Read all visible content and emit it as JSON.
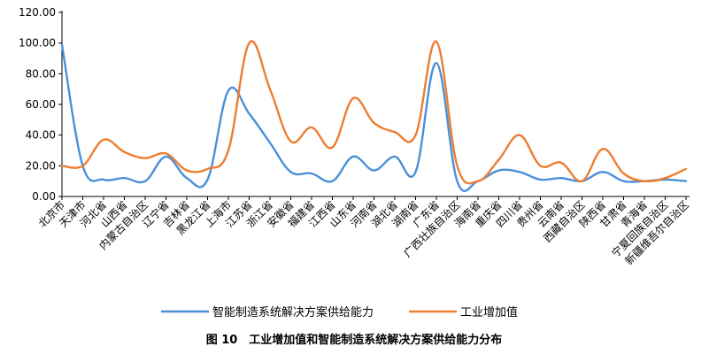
{
  "chart_data": {
    "type": "line",
    "caption": "图 10　工业增加值和智能制造系统解决方案供给能力分布",
    "ylim": [
      0,
      120
    ],
    "yticks": [
      "0.00",
      "20.00",
      "40.00",
      "60.00",
      "80.00",
      "100.00",
      "120.00"
    ],
    "grid": false,
    "legend_position": "bottom",
    "categories": [
      "北京市",
      "天津市",
      "河北省",
      "山西省",
      "内蒙古自治区",
      "辽宁省",
      "吉林省",
      "黑龙江省",
      "上海市",
      "江苏省",
      "浙江省",
      "安徽省",
      "福建省",
      "江西省",
      "山东省",
      "河南省",
      "湖北省",
      "湖南省",
      "广东省",
      "广西壮族自治区",
      "海南省",
      "重庆省",
      "四川省",
      "贵州省",
      "云南省",
      "西藏自治区",
      "陕西省",
      "甘肃省",
      "青海省",
      "宁夏回族自治区",
      "新疆维吾尔自治区"
    ],
    "series": [
      {
        "name": "智能制造系统解决方案供给能力",
        "color": "#4a90d9",
        "values": [
          99,
          20,
          11,
          12,
          10,
          26,
          12,
          11,
          69,
          54,
          35,
          16,
          15,
          10,
          26,
          17,
          26,
          16,
          87,
          10,
          10,
          17,
          16,
          11,
          12,
          10,
          16,
          10,
          10,
          11,
          10
        ]
      },
      {
        "name": "工业增加值",
        "color": "#ed7d31",
        "values": [
          20,
          20,
          37,
          29,
          25,
          28,
          17,
          18,
          30,
          100,
          70,
          36,
          45,
          32,
          64,
          48,
          42,
          40,
          101,
          20,
          10,
          24,
          40,
          20,
          22,
          10,
          31,
          15,
          10,
          12,
          18
        ]
      }
    ]
  }
}
